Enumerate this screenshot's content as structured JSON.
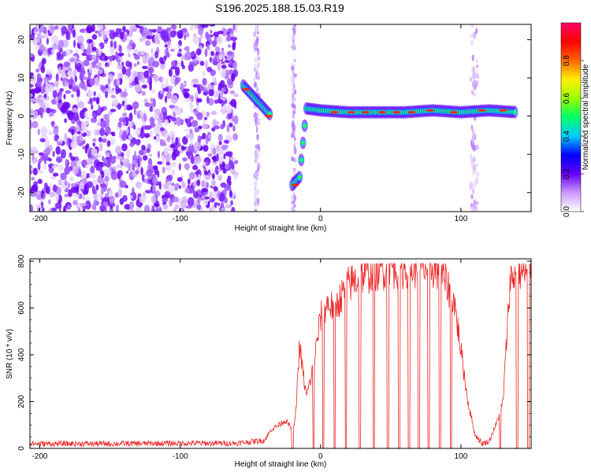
{
  "title": "S196.2025.188.15.03.R19",
  "chart_data": [
    {
      "type": "heatmap",
      "xlabel": "Height of straight line (km)",
      "ylabel": "Frequency (Hz)",
      "xlim": [
        -207,
        150
      ],
      "ylim": [
        -25,
        24
      ],
      "xticks": [
        -200,
        -100,
        0,
        100
      ],
      "yticks": [
        -20,
        -10,
        0,
        10,
        20
      ],
      "colorbar": {
        "label": "Normalized spectral amplitude",
        "range": [
          0,
          1
        ],
        "ticks": [
          "0.0",
          "0.2",
          "0.4",
          "0.6",
          "0.8"
        ],
        "colors": [
          "#ffffff",
          "#cc99ff",
          "#6600ff",
          "#0000ff",
          "#00ccff",
          "#00ff66",
          "#99ff00",
          "#ffee00",
          "#ff6600",
          "#ff0000",
          "#ff0066"
        ]
      },
      "ridge": [
        {
          "x": -55,
          "y": 8
        },
        {
          "x": -50,
          "y": 6
        },
        {
          "x": -45,
          "y": 4
        },
        {
          "x": -40,
          "y": 2
        },
        {
          "x": -35,
          "y": 0
        },
        {
          "x": -20,
          "y": -18
        },
        {
          "x": -15,
          "y": -16
        },
        {
          "x": -10,
          "y": 2
        },
        {
          "x": 0,
          "y": 1.5
        },
        {
          "x": 20,
          "y": 1
        },
        {
          "x": 40,
          "y": 1
        },
        {
          "x": 60,
          "y": 1
        },
        {
          "x": 80,
          "y": 1.5
        },
        {
          "x": 100,
          "y": 1
        },
        {
          "x": 120,
          "y": 1.5
        },
        {
          "x": 140,
          "y": 1
        }
      ]
    },
    {
      "type": "line",
      "xlabel": "Height of straight line (km)",
      "ylabel": "SNR (10 * v/v)",
      "xlim": [
        -207,
        150
      ],
      "ylim": [
        0,
        810
      ],
      "xticks": [
        -200,
        -100,
        0,
        100
      ],
      "yticks": [
        0,
        200,
        400,
        600,
        800
      ],
      "series": [
        {
          "color": "#ee2222",
          "points": [
            [
              -207,
              20
            ],
            [
              -150,
              20
            ],
            [
              -100,
              22
            ],
            [
              -60,
              22
            ],
            [
              -40,
              35
            ],
            [
              -35,
              80
            ],
            [
              -25,
              120
            ],
            [
              -20,
              80
            ],
            [
              -18,
              120
            ],
            [
              -15,
              440
            ],
            [
              -12,
              300
            ],
            [
              -10,
              220
            ],
            [
              -5,
              350
            ],
            [
              0,
              560
            ],
            [
              5,
              620
            ],
            [
              10,
              600
            ],
            [
              15,
              650
            ],
            [
              20,
              700
            ],
            [
              30,
              740
            ],
            [
              40,
              760
            ],
            [
              50,
              770
            ],
            [
              60,
              770
            ],
            [
              70,
              770
            ],
            [
              80,
              770
            ],
            [
              85,
              760
            ],
            [
              90,
              700
            ],
            [
              95,
              640
            ],
            [
              100,
              420
            ],
            [
              105,
              200
            ],
            [
              110,
              60
            ],
            [
              115,
              20
            ],
            [
              120,
              30
            ],
            [
              125,
              100
            ],
            [
              130,
              200
            ],
            [
              135,
              720
            ],
            [
              140,
              750
            ],
            [
              150,
              750
            ]
          ],
          "dropouts": [
            -20,
            -5,
            2,
            10,
            18,
            28,
            38,
            48,
            56,
            63,
            70,
            77,
            85,
            93,
            128,
            140,
            148
          ]
        }
      ]
    }
  ]
}
